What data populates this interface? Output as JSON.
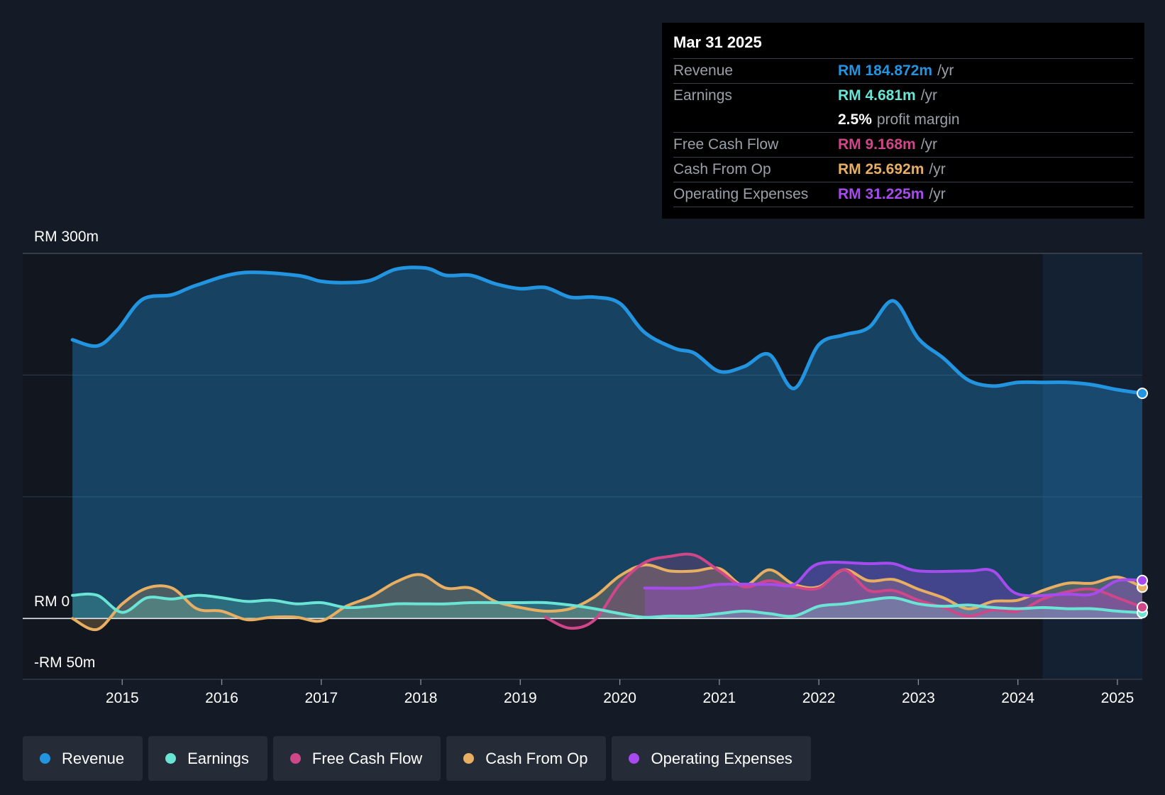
{
  "chart_data": {
    "type": "line",
    "title": "",
    "xlabel": "",
    "ylabel": "",
    "ylim": [
      -50,
      300
    ],
    "y_axis_labels": {
      "top": "RM 300m",
      "zero": "RM 0",
      "bottom": "-RM 50m"
    },
    "x_tick_labels": [
      "2015",
      "2016",
      "2017",
      "2018",
      "2019",
      "2020",
      "2021",
      "2022",
      "2023",
      "2024",
      "2025"
    ],
    "x_tick_years": [
      2015,
      2016,
      2017,
      2018,
      2019,
      2020,
      2021,
      2022,
      2023,
      2024,
      2025
    ],
    "x_range": [
      2014.0,
      2025.25
    ],
    "forecast_start": 2024.25,
    "series": [
      {
        "name": "Revenue",
        "key": "revenue",
        "color": "#2394df",
        "points": [
          [
            2014.5,
            229
          ],
          [
            2014.75,
            224
          ],
          [
            2014.95,
            237
          ],
          [
            2015.2,
            262
          ],
          [
            2015.5,
            266
          ],
          [
            2015.75,
            274
          ],
          [
            2016.2,
            284
          ],
          [
            2016.75,
            282
          ],
          [
            2017.0,
            277
          ],
          [
            2017.25,
            276
          ],
          [
            2017.5,
            278
          ],
          [
            2017.75,
            287
          ],
          [
            2018.05,
            288
          ],
          [
            2018.25,
            282
          ],
          [
            2018.5,
            282
          ],
          [
            2018.75,
            275
          ],
          [
            2019.0,
            271
          ],
          [
            2019.25,
            272
          ],
          [
            2019.5,
            264
          ],
          [
            2019.75,
            264
          ],
          [
            2020.0,
            259
          ],
          [
            2020.25,
            235
          ],
          [
            2020.55,
            222
          ],
          [
            2020.75,
            218
          ],
          [
            2021.0,
            203
          ],
          [
            2021.25,
            207
          ],
          [
            2021.5,
            217
          ],
          [
            2021.75,
            189
          ],
          [
            2022.0,
            225
          ],
          [
            2022.25,
            233
          ],
          [
            2022.5,
            239
          ],
          [
            2022.75,
            261
          ],
          [
            2023.0,
            230
          ],
          [
            2023.25,
            214
          ],
          [
            2023.5,
            196
          ],
          [
            2023.75,
            191
          ],
          [
            2024.0,
            194
          ],
          [
            2024.25,
            194
          ],
          [
            2024.5,
            194
          ],
          [
            2024.75,
            192
          ],
          [
            2025.0,
            188
          ],
          [
            2025.25,
            185
          ]
        ]
      },
      {
        "name": "Earnings",
        "key": "earnings",
        "color": "#6ae4d4",
        "points": [
          [
            2014.5,
            19
          ],
          [
            2014.75,
            19
          ],
          [
            2015.0,
            5
          ],
          [
            2015.25,
            17
          ],
          [
            2015.5,
            16
          ],
          [
            2015.75,
            19
          ],
          [
            2016.0,
            17
          ],
          [
            2016.25,
            14
          ],
          [
            2016.5,
            15
          ],
          [
            2016.75,
            12
          ],
          [
            2017.0,
            13
          ],
          [
            2017.25,
            9
          ],
          [
            2017.5,
            10
          ],
          [
            2017.75,
            12
          ],
          [
            2018.0,
            12
          ],
          [
            2018.25,
            12
          ],
          [
            2018.5,
            13
          ],
          [
            2018.75,
            13
          ],
          [
            2019.0,
            13
          ],
          [
            2019.25,
            13
          ],
          [
            2019.5,
            11
          ],
          [
            2019.75,
            8
          ],
          [
            2020.0,
            4
          ],
          [
            2020.25,
            1
          ],
          [
            2020.5,
            2
          ],
          [
            2020.75,
            2
          ],
          [
            2021.0,
            4
          ],
          [
            2021.25,
            6
          ],
          [
            2021.5,
            4
          ],
          [
            2021.75,
            2
          ],
          [
            2022.0,
            10
          ],
          [
            2022.25,
            12
          ],
          [
            2022.5,
            15
          ],
          [
            2022.75,
            17
          ],
          [
            2023.0,
            12
          ],
          [
            2023.25,
            10
          ],
          [
            2023.5,
            11
          ],
          [
            2023.75,
            9
          ],
          [
            2024.0,
            8
          ],
          [
            2024.25,
            9
          ],
          [
            2024.5,
            8
          ],
          [
            2024.75,
            8
          ],
          [
            2025.0,
            6
          ],
          [
            2025.25,
            4.7
          ]
        ]
      },
      {
        "name": "Free Cash Flow",
        "key": "fcf",
        "color": "#cf4689",
        "points": [
          [
            2019.25,
            1
          ],
          [
            2019.5,
            -8
          ],
          [
            2019.75,
            -1
          ],
          [
            2020.0,
            28
          ],
          [
            2020.25,
            46
          ],
          [
            2020.5,
            51
          ],
          [
            2020.75,
            52
          ],
          [
            2021.0,
            39
          ],
          [
            2021.25,
            26
          ],
          [
            2021.5,
            31
          ],
          [
            2021.75,
            26
          ],
          [
            2022.0,
            25
          ],
          [
            2022.25,
            40
          ],
          [
            2022.5,
            23
          ],
          [
            2022.75,
            23
          ],
          [
            2023.0,
            15
          ],
          [
            2023.25,
            9
          ],
          [
            2023.5,
            2
          ],
          [
            2023.75,
            7
          ],
          [
            2024.0,
            6
          ],
          [
            2024.25,
            16
          ],
          [
            2024.5,
            22
          ],
          [
            2024.75,
            24
          ],
          [
            2025.0,
            17
          ],
          [
            2025.25,
            9.2
          ]
        ]
      },
      {
        "name": "Cash From Op",
        "key": "cfo",
        "color": "#e8af62",
        "points": [
          [
            2014.5,
            0
          ],
          [
            2014.75,
            -9
          ],
          [
            2015.0,
            12
          ],
          [
            2015.25,
            25
          ],
          [
            2015.5,
            25
          ],
          [
            2015.75,
            8
          ],
          [
            2016.0,
            6
          ],
          [
            2016.25,
            -1
          ],
          [
            2016.5,
            1
          ],
          [
            2016.75,
            1
          ],
          [
            2017.0,
            -2
          ],
          [
            2017.25,
            10
          ],
          [
            2017.5,
            18
          ],
          [
            2017.75,
            30
          ],
          [
            2018.0,
            36
          ],
          [
            2018.25,
            25
          ],
          [
            2018.5,
            25
          ],
          [
            2018.75,
            14
          ],
          [
            2019.0,
            9
          ],
          [
            2019.25,
            6
          ],
          [
            2019.5,
            8
          ],
          [
            2019.75,
            18
          ],
          [
            2020.0,
            35
          ],
          [
            2020.25,
            44
          ],
          [
            2020.5,
            39
          ],
          [
            2020.75,
            39
          ],
          [
            2021.0,
            41
          ],
          [
            2021.25,
            27
          ],
          [
            2021.5,
            40
          ],
          [
            2021.75,
            28
          ],
          [
            2022.0,
            26
          ],
          [
            2022.25,
            40
          ],
          [
            2022.5,
            31
          ],
          [
            2022.75,
            32
          ],
          [
            2023.0,
            24
          ],
          [
            2023.25,
            17
          ],
          [
            2023.5,
            8
          ],
          [
            2023.75,
            14
          ],
          [
            2024.0,
            15
          ],
          [
            2024.25,
            23
          ],
          [
            2024.5,
            29
          ],
          [
            2024.75,
            29
          ],
          [
            2025.0,
            34
          ],
          [
            2025.25,
            25.7
          ]
        ]
      },
      {
        "name": "Operating Expenses",
        "key": "opex",
        "color": "#a74bef",
        "points": [
          [
            2020.25,
            25
          ],
          [
            2020.75,
            25
          ],
          [
            2021.0,
            28
          ],
          [
            2021.5,
            28
          ],
          [
            2021.75,
            28
          ],
          [
            2022.0,
            45
          ],
          [
            2022.5,
            45
          ],
          [
            2022.75,
            45
          ],
          [
            2023.0,
            39
          ],
          [
            2023.5,
            39
          ],
          [
            2023.75,
            39
          ],
          [
            2024.0,
            20
          ],
          [
            2024.5,
            20
          ],
          [
            2024.75,
            20
          ],
          [
            2025.0,
            31
          ],
          [
            2025.25,
            31.2
          ]
        ]
      }
    ]
  },
  "tooltip": {
    "date": "Mar 31 2025",
    "rows": [
      {
        "label": "Revenue",
        "value": "RM 184.872m",
        "unit": "/yr",
        "color": "#2394df"
      },
      {
        "label": "Earnings",
        "value": "RM 4.681m",
        "unit": "/yr",
        "color": "#6ae4d4"
      },
      {
        "label": "",
        "value": "2.5%",
        "unit": "profit margin",
        "color": "#ffffff"
      },
      {
        "label": "Free Cash Flow",
        "value": "RM 9.168m",
        "unit": "/yr",
        "color": "#cf4689"
      },
      {
        "label": "Cash From Op",
        "value": "RM 25.692m",
        "unit": "/yr",
        "color": "#e8af62"
      },
      {
        "label": "Operating Expenses",
        "value": "RM 31.225m",
        "unit": "/yr",
        "color": "#a74bef"
      }
    ]
  },
  "legend": [
    {
      "label": "Revenue",
      "color": "#2394df"
    },
    {
      "label": "Earnings",
      "color": "#6ae4d4"
    },
    {
      "label": "Free Cash Flow",
      "color": "#cf4689"
    },
    {
      "label": "Cash From Op",
      "color": "#e8af62"
    },
    {
      "label": "Operating Expenses",
      "color": "#a74bef"
    }
  ]
}
